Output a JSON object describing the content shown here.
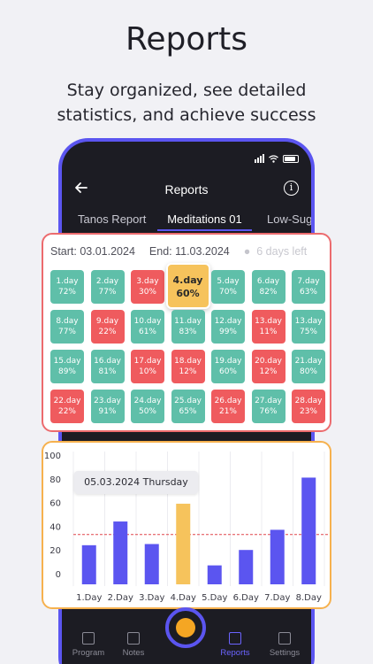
{
  "hero": {
    "title": "Reports",
    "subtitle": "Stay organized, see detailed statistics, and achieve success"
  },
  "appbar": {
    "title": "Reports",
    "back_icon": "arrow-left-icon",
    "info_icon": "info-icon"
  },
  "tabs": [
    "Tanos Report",
    "Meditations 01",
    "Low-Suga"
  ],
  "active_tab": 1,
  "range": {
    "start": "Start: 03.01.2024",
    "end": "End: 11.03.2024",
    "left": "6 days left"
  },
  "days": [
    {
      "label": "1.day",
      "pct": "72%",
      "status": "green"
    },
    {
      "label": "2.day",
      "pct": "77%",
      "status": "green"
    },
    {
      "label": "3.day",
      "pct": "30%",
      "status": "red"
    },
    {
      "label": "4.day",
      "pct": "60%",
      "status": "highlight"
    },
    {
      "label": "5.day",
      "pct": "70%",
      "status": "green"
    },
    {
      "label": "6.day",
      "pct": "82%",
      "status": "green"
    },
    {
      "label": "7.day",
      "pct": "63%",
      "status": "green"
    },
    {
      "label": "8.day",
      "pct": "77%",
      "status": "green"
    },
    {
      "label": "9.day",
      "pct": "22%",
      "status": "red"
    },
    {
      "label": "10.day",
      "pct": "61%",
      "status": "green"
    },
    {
      "label": "11.day",
      "pct": "83%",
      "status": "green"
    },
    {
      "label": "12.day",
      "pct": "99%",
      "status": "green"
    },
    {
      "label": "13.day",
      "pct": "11%",
      "status": "red"
    },
    {
      "label": "13.day",
      "pct": "75%",
      "status": "green"
    },
    {
      "label": "15.day",
      "pct": "89%",
      "status": "green"
    },
    {
      "label": "16.day",
      "pct": "81%",
      "status": "green"
    },
    {
      "label": "17.day",
      "pct": "10%",
      "status": "red"
    },
    {
      "label": "18.day",
      "pct": "12%",
      "status": "red"
    },
    {
      "label": "19.day",
      "pct": "60%",
      "status": "green"
    },
    {
      "label": "20.day",
      "pct": "12%",
      "status": "red"
    },
    {
      "label": "21.day",
      "pct": "80%",
      "status": "green"
    },
    {
      "label": "22.day",
      "pct": "22%",
      "status": "red"
    },
    {
      "label": "23.day",
      "pct": "91%",
      "status": "green"
    },
    {
      "label": "24.day",
      "pct": "50%",
      "status": "green"
    },
    {
      "label": "25.day",
      "pct": "65%",
      "status": "green"
    },
    {
      "label": "26.day",
      "pct": "21%",
      "status": "red"
    },
    {
      "label": "27.day",
      "pct": "76%",
      "status": "green"
    },
    {
      "label": "28.day",
      "pct": "23%",
      "status": "red"
    }
  ],
  "tooltip": "05.03.2024 Thursday",
  "chart_data": {
    "type": "bar",
    "categories": [
      "1.Day",
      "2.Day",
      "3.Day",
      "4.Day",
      "5.Day",
      "6.Day",
      "7.Day",
      "8.Day"
    ],
    "values": [
      24,
      44,
      25,
      59,
      7,
      20,
      37,
      81
    ],
    "highlight_index": 3,
    "reference_line": 33,
    "yticks": [
      0,
      20,
      40,
      60,
      80,
      100
    ],
    "ylim": [
      0,
      100
    ],
    "grid": "vertical",
    "colors": {
      "bar": "#5b55f0",
      "highlight": "#f6c35c",
      "reference": "#e0474c"
    }
  },
  "colors": {
    "accent": "#5b55f0",
    "green": "#5fbfa9",
    "red": "#ef5b5e",
    "yellow": "#f6c35c"
  },
  "nav": [
    {
      "label": "Program",
      "icon": "grid-icon"
    },
    {
      "label": "Notes",
      "icon": "edit-icon"
    },
    {
      "label": "Reports",
      "icon": "bar-chart-icon",
      "active": true
    },
    {
      "label": "Settings",
      "icon": "sliders-icon"
    }
  ]
}
